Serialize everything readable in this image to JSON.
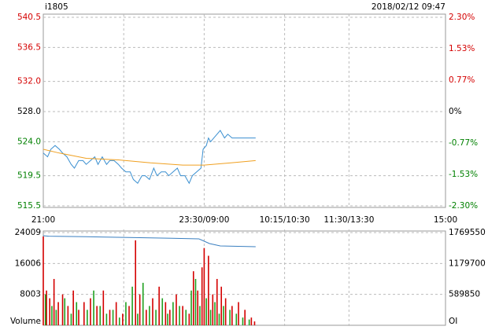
{
  "chart_data": [
    {
      "type": "line",
      "title": "i1805",
      "subtitle": "2018/02/12 09:47",
      "up_color": "#d40000",
      "down_color": "#008000",
      "flat_color": "#000000",
      "xlim": [
        0,
        375
      ],
      "xticks": [
        {
          "value": 0,
          "label": "21:00"
        },
        {
          "value": 150,
          "label": "23:30/09:00"
        },
        {
          "value": 225,
          "label": "10:15/10:30"
        },
        {
          "value": 285,
          "label": "11:30/13:30"
        },
        {
          "value": 375,
          "label": "15:00"
        }
      ],
      "xgrid": [
        75,
        150,
        225,
        285
      ],
      "ylim": [
        515.5,
        540.5
      ],
      "yticks": [
        540.5,
        536.5,
        {
          "value": 532.0,
          "label": "532.0"
        },
        {
          "value": 528.0,
          "label": "528.0"
        },
        {
          "value": 524.0,
          "label": "524.0"
        },
        519.5,
        515.5
      ],
      "y2lim": [
        -2.3,
        2.3
      ],
      "y2ticks": [
        {
          "value": 2.3,
          "label": "2.30%"
        },
        {
          "value": 1.53,
          "label": "1.53%"
        },
        {
          "value": 0.77,
          "label": "0.77%"
        },
        {
          "value": 0,
          "label": "0%"
        },
        {
          "value": -0.77,
          "label": "-0.77%"
        },
        {
          "value": -1.53,
          "label": "-1.53%"
        },
        {
          "value": -2.3,
          "label": "-2.30%"
        }
      ],
      "series": [
        {
          "type": "line",
          "color": "#3a8fd0",
          "x": [
            0,
            4,
            7,
            11,
            15,
            18,
            22,
            26,
            29,
            33,
            37,
            40,
            44,
            48,
            51,
            55,
            59,
            62,
            66,
            70,
            73,
            77,
            81,
            84,
            88,
            92,
            95,
            99,
            103,
            106,
            110,
            114,
            117,
            121,
            125,
            128,
            132,
            136,
            139,
            143,
            147,
            149,
            152,
            154,
            156,
            159,
            162,
            165,
            169,
            172,
            176,
            180,
            183,
            187,
            191,
            194,
            198
          ],
          "values": [
            522.5,
            522.0,
            523.0,
            523.5,
            523.0,
            522.5,
            522.0,
            521.0,
            520.5,
            521.5,
            521.5,
            521.0,
            521.5,
            522.0,
            521.0,
            522.0,
            521.0,
            521.5,
            521.5,
            521.0,
            520.5,
            520.0,
            520.0,
            519.0,
            518.5,
            519.5,
            519.5,
            519.0,
            520.5,
            519.5,
            520.0,
            520.0,
            519.5,
            520.0,
            520.5,
            519.5,
            519.5,
            518.5,
            519.5,
            520.0,
            520.5,
            523.0,
            523.5,
            524.5,
            524.0,
            524.5,
            525.0,
            525.5,
            524.5,
            525.0,
            524.5,
            524.5,
            524.5,
            524.5,
            524.5,
            524.5,
            524.5
          ]
        },
        {
          "type": "line",
          "color": "#f0a020",
          "x": [
            0,
            15,
            40,
            70,
            100,
            130,
            150,
            175,
            198
          ],
          "values": [
            523.0,
            522.5,
            521.8,
            521.6,
            521.2,
            520.9,
            520.9,
            521.2,
            521.5
          ]
        }
      ]
    },
    {
      "type": "bar",
      "ylabel": "Volume",
      "y2label": "OI",
      "xlim": [
        0,
        375
      ],
      "xgrid": [
        75,
        150,
        225,
        285
      ],
      "ylim": [
        0,
        24009
      ],
      "yticks": [
        24009,
        16006,
        8003
      ],
      "y2lim": [
        0,
        1769550
      ],
      "y2ticks": [
        1769550,
        1179700,
        589850
      ],
      "series": [
        {
          "type": "bar",
          "color": "#d40000",
          "x": [
            0,
            3,
            6,
            10,
            14,
            18,
            23,
            28,
            33,
            38,
            44,
            50,
            56,
            62,
            68,
            74,
            80,
            86,
            90,
            96,
            102,
            108,
            114,
            118,
            124,
            130,
            136,
            140,
            144,
            148,
            150,
            154,
            158,
            162,
            166,
            170,
            176,
            182,
            188,
            194,
            197
          ],
          "values": [
            23000,
            9000,
            7000,
            12000,
            6000,
            8000,
            5000,
            9000,
            4000,
            6000,
            7000,
            5000,
            9000,
            4000,
            6000,
            3000,
            5000,
            22000,
            8000,
            4000,
            7000,
            10000,
            6000,
            4000,
            8000,
            5000,
            3000,
            14000,
            9000,
            15000,
            20000,
            18000,
            8000,
            12000,
            10000,
            7000,
            5000,
            6000,
            4000,
            2000,
            1000
          ]
        },
        {
          "type": "bar",
          "color": "#20a020",
          "x": [
            2,
            8,
            12,
            20,
            26,
            31,
            41,
            47,
            53,
            59,
            65,
            71,
            77,
            83,
            88,
            93,
            99,
            105,
            111,
            116,
            121,
            127,
            133,
            138,
            142,
            146,
            152,
            156,
            160,
            164,
            168,
            174,
            180,
            186,
            192
          ],
          "values": [
            8000,
            5000,
            4000,
            7000,
            3000,
            6000,
            4000,
            9000,
            5000,
            3000,
            4000,
            2000,
            6000,
            10000,
            3000,
            11000,
            5000,
            4000,
            7000,
            3000,
            6000,
            5000,
            4000,
            9000,
            12000,
            5000,
            7000,
            4000,
            6000,
            3000,
            5000,
            4000,
            3000,
            2000,
            1500
          ]
        },
        {
          "type": "line",
          "axis": "y2",
          "color": "#3a7fc0",
          "x": [
            0,
            5,
            40,
            80,
            120,
            145,
            155,
            165,
            198
          ],
          "values": [
            1710000,
            1700000,
            1690000,
            1675000,
            1660000,
            1650000,
            1560000,
            1515000,
            1500000
          ]
        }
      ]
    }
  ]
}
